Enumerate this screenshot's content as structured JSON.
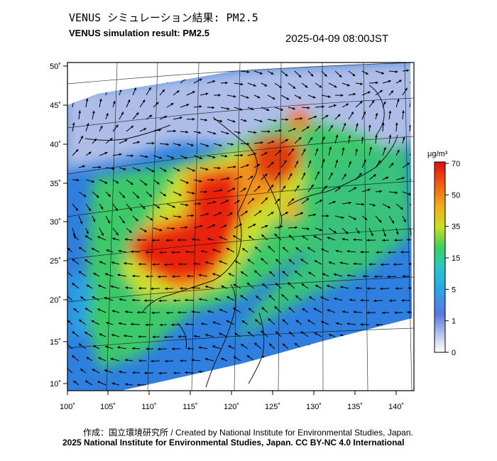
{
  "header": {
    "title_jp": "VENUS シミュレーション結果: PM2.5",
    "title_en": "VENUS simulation result: PM2.5",
    "timestamp": "2025-04-09 08:00JST"
  },
  "map": {
    "lon_labels": [
      "100˚",
      "105˚",
      "110˚",
      "115˚",
      "120˚",
      "125˚",
      "130˚",
      "135˚",
      "140˚"
    ],
    "lat_labels": [
      "50˚",
      "45˚",
      "40˚",
      "35˚",
      "30˚",
      "25˚",
      "20˚",
      "15˚",
      "10˚"
    ],
    "lon_range": [
      100,
      142
    ],
    "lat_range": [
      9,
      51
    ]
  },
  "colorbar": {
    "unit": "μg/m³",
    "ticks": [
      "70",
      "50",
      "35",
      "15",
      "5",
      "1",
      "0"
    ],
    "colors": [
      "#ffffff",
      "#b8c4f0",
      "#2f55d8",
      "#22b0e0",
      "#3cd05a",
      "#e8e020",
      "#f08a10",
      "#e81810"
    ]
  },
  "footer": {
    "credit_line1": "作成：国立環境研究所 / Created by National Institute for Environmental Studies, Japan.",
    "credit_line2": "2025 National Institute for Environmental Studies, Japan. CC BY-NC 4.0 International"
  }
}
